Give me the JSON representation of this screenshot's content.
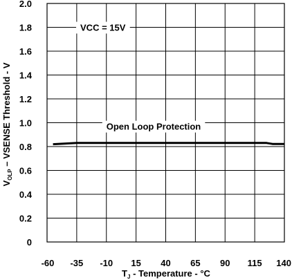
{
  "chart_data": {
    "type": "line",
    "xlabel": {
      "main": "T",
      "sub": "J",
      "rest": " - Temperature - °C"
    },
    "ylabel": {
      "main": "V",
      "sub": "OLP",
      "rest": " – VSENSE Threshold - V"
    },
    "xlim": [
      -60,
      140
    ],
    "ylim": [
      0,
      2.0
    ],
    "x_ticks": [
      -60,
      -35,
      -10,
      15,
      40,
      65,
      90,
      115,
      140
    ],
    "y_ticks": [
      0,
      0.2,
      0.4,
      0.6,
      0.8,
      1.0,
      1.2,
      1.4,
      1.6,
      1.8,
      2.0
    ],
    "x_tick_labels": [
      "-60",
      "-35",
      "-10",
      "15",
      "40",
      "65",
      "90",
      "115",
      "140"
    ],
    "y_tick_labels": [
      "0",
      "0.2",
      "0.4",
      "0.6",
      "0.8",
      "1.0",
      "1.2",
      "1.4",
      "1.6",
      "1.8",
      "2.0"
    ],
    "grid": true,
    "annotations": [
      {
        "text": "VCC = 15V",
        "x": -32,
        "y": 1.8
      },
      {
        "text": "Open Loop Protection",
        "x": -10,
        "y": 0.97
      }
    ],
    "series": [
      {
        "x": [
          -55,
          -35,
          -10,
          15,
          40,
          65,
          90,
          115,
          125,
          130,
          140
        ],
        "y": [
          0.82,
          0.83,
          0.83,
          0.83,
          0.83,
          0.83,
          0.83,
          0.83,
          0.83,
          0.822,
          0.822
        ]
      }
    ]
  }
}
